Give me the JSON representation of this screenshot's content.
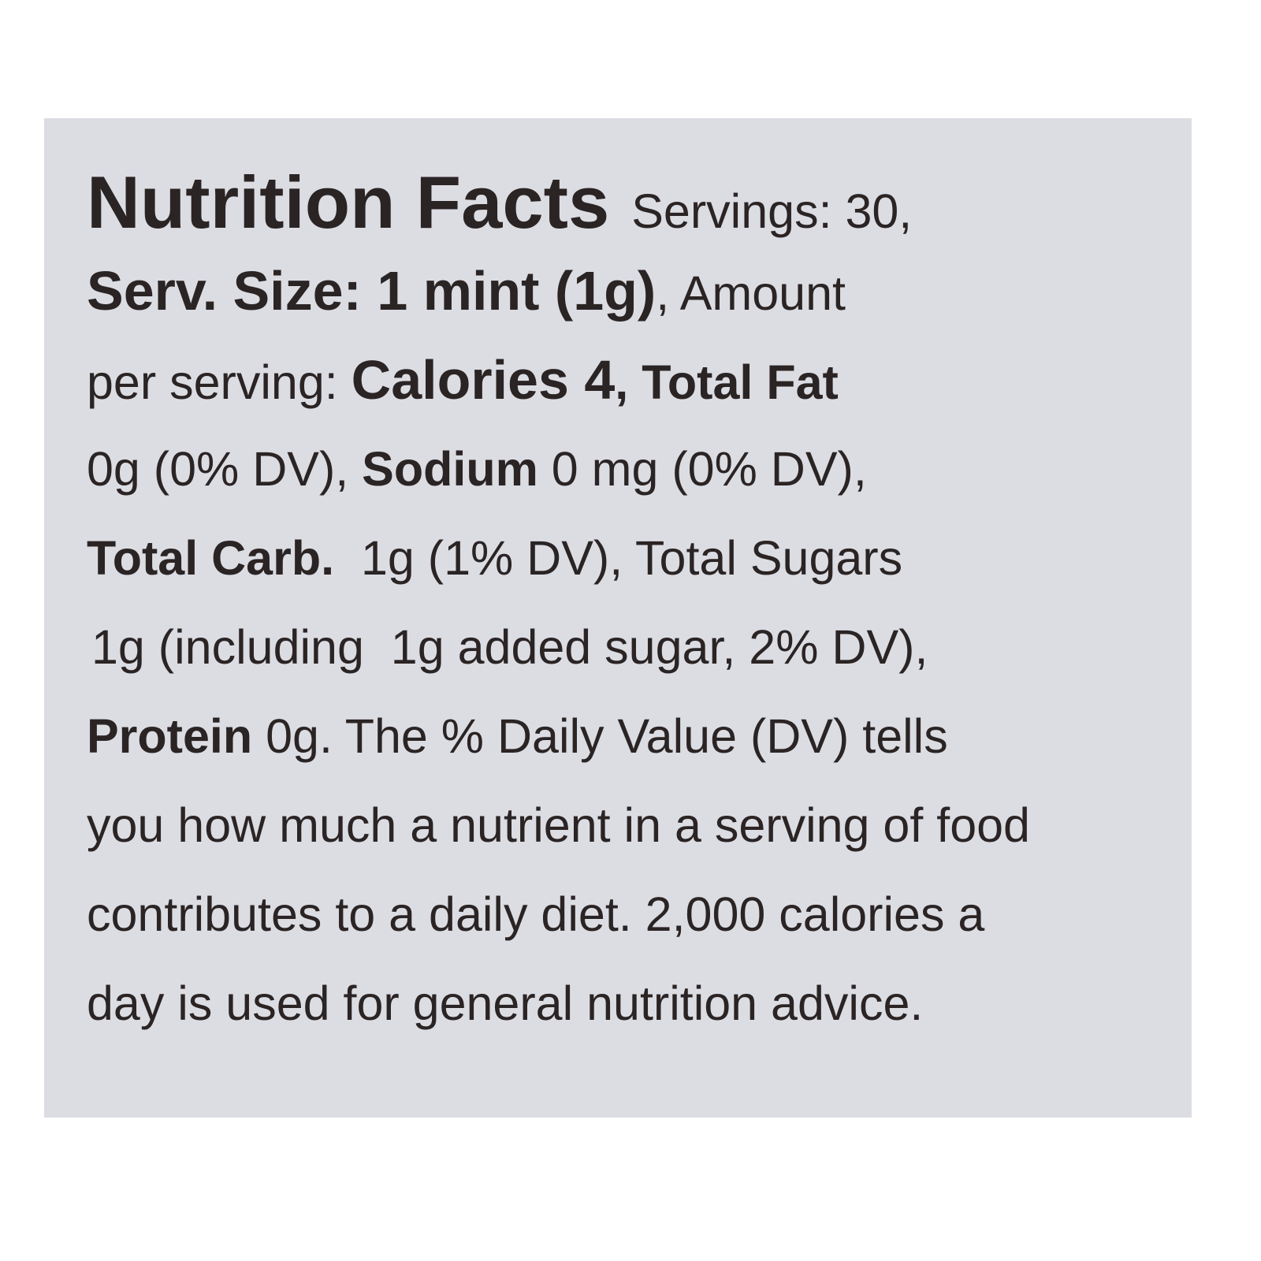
{
  "label": {
    "title": "Nutrition Facts",
    "lines": [
      [
        {
          "t": "Servings: 30,"
        }
      ],
      [
        {
          "t": "Serv. Size: 1 mint (1g)"
        },
        {
          "t": ", Amount"
        }
      ],
      [
        {
          "t": "per serving: "
        },
        {
          "t": "Calories 4"
        },
        {
          "t": ", "
        },
        {
          "t": "Total Fat"
        }
      ],
      [
        {
          "t": "0g (0% DV), "
        },
        {
          "t": "Sodium"
        },
        {
          "t": " 0 mg (0% DV),"
        }
      ],
      [
        {
          "t": "Total Carb."
        },
        {
          "t": "  1g (1% DV), Total Sugars"
        }
      ],
      [
        {
          "t": "1g (including  1g added sugar, 2% DV),"
        }
      ],
      [
        {
          "t": "Protein"
        },
        {
          "t": " 0g. The % Daily Value (DV) tells"
        }
      ],
      [
        {
          "t": "you how much a nutrient in a serving of food"
        }
      ],
      [
        {
          "t": "contributes to a daily diet. 2,000 calories a"
        }
      ],
      [
        {
          "t": "day is used for general nutrition advice."
        }
      ]
    ]
  },
  "colors": {
    "panel": "#dcdde3",
    "text": "#2b2424"
  }
}
